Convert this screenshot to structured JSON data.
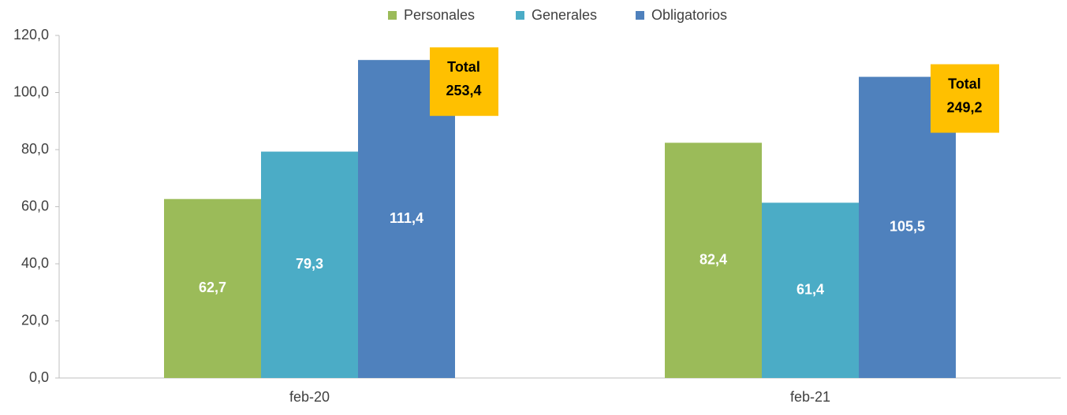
{
  "chart_data": {
    "type": "bar",
    "categories": [
      "feb-20",
      "feb-21"
    ],
    "series": [
      {
        "name": "Personales",
        "color": "#9bbb59",
        "values": [
          62.7,
          82.4
        ],
        "value_labels": [
          "62,7",
          "82,4"
        ]
      },
      {
        "name": "Generales",
        "color": "#4bacc6",
        "values": [
          79.3,
          61.4
        ],
        "value_labels": [
          "79,3",
          "61,4"
        ]
      },
      {
        "name": "Obligatorios",
        "color": "#4f81bd",
        "values": [
          111.4,
          105.5
        ],
        "value_labels": [
          "111,4",
          "105,5"
        ]
      }
    ],
    "totals": {
      "label": "Total",
      "color": "#ffc000",
      "values": [
        253.4,
        249.2
      ],
      "value_labels": [
        "253,4",
        "249,2"
      ]
    },
    "ylim": [
      0,
      120
    ],
    "yticks": [
      {
        "value": 0,
        "label": "0,0"
      },
      {
        "value": 20,
        "label": "20,0"
      },
      {
        "value": 40,
        "label": "40,0"
      },
      {
        "value": 60,
        "label": "60,0"
      },
      {
        "value": 80,
        "label": "80,0"
      },
      {
        "value": 100,
        "label": "100,0"
      },
      {
        "value": 120,
        "label": "120,0"
      }
    ],
    "grid": false,
    "legend": "top"
  }
}
